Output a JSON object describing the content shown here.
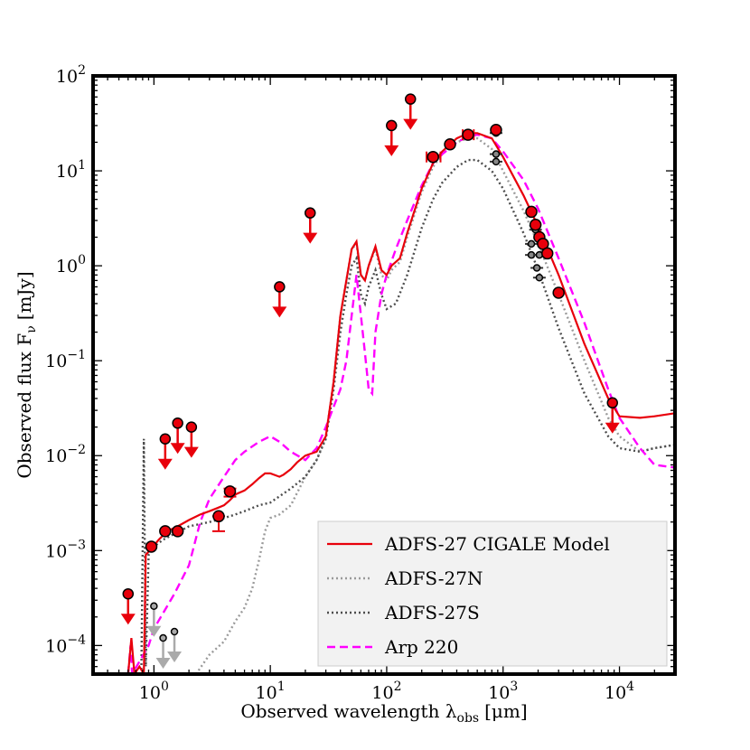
{
  "chart_data": {
    "type": "line",
    "title": "",
    "xscale": "log",
    "yscale": "log",
    "xlim": [
      0.3,
      30000
    ],
    "ylim": [
      5e-05,
      100
    ],
    "xlabel": "Observed wavelength λ",
    "xlabel_sub": "obs",
    "xlabel_unit": "[μm]",
    "ylabel": "Observed flux F",
    "ylabel_sub": "ν",
    "ylabel_unit": "[mJy]",
    "x_ticks": [
      {
        "value": 1,
        "base": "10",
        "exp": "0"
      },
      {
        "value": 10,
        "base": "10",
        "exp": "1"
      },
      {
        "value": 100,
        "base": "10",
        "exp": "2"
      },
      {
        "value": 1000,
        "base": "10",
        "exp": "3"
      },
      {
        "value": 10000,
        "base": "10",
        "exp": "4"
      }
    ],
    "y_ticks": [
      {
        "value": 0.0001,
        "base": "10",
        "exp": "−4"
      },
      {
        "value": 0.001,
        "base": "10",
        "exp": "−3"
      },
      {
        "value": 0.01,
        "base": "10",
        "exp": "−2"
      },
      {
        "value": 0.1,
        "base": "10",
        "exp": "−1"
      },
      {
        "value": 1,
        "base": "10",
        "exp": "0"
      },
      {
        "value": 10,
        "base": "10",
        "exp": "1"
      },
      {
        "value": 100,
        "base": "10",
        "exp": "2"
      }
    ],
    "legend_position": "bottom-right",
    "series": [
      {
        "name": "ADFS-27 CIGALE Model",
        "color": "#e8000b",
        "style": "solid",
        "points": [
          [
            0.6,
            5e-05
          ],
          [
            0.64,
            0.00012
          ],
          [
            0.68,
            5e-05
          ],
          [
            0.75,
            6e-05
          ],
          [
            0.82,
            5e-05
          ],
          [
            0.85,
            0.0009
          ],
          [
            0.95,
            0.00105
          ],
          [
            1.1,
            0.0013
          ],
          [
            1.3,
            0.0016
          ],
          [
            1.6,
            0.0018
          ],
          [
            2.0,
            0.0021
          ],
          [
            2.5,
            0.0024
          ],
          [
            3.0,
            0.0026
          ],
          [
            3.5,
            0.0028
          ],
          [
            4.0,
            0.003
          ],
          [
            4.5,
            0.0034
          ],
          [
            5.0,
            0.0039
          ],
          [
            6.0,
            0.0043
          ],
          [
            7.0,
            0.005
          ],
          [
            8.0,
            0.0058
          ],
          [
            9.0,
            0.0065
          ],
          [
            10.0,
            0.0065
          ],
          [
            12.0,
            0.006
          ],
          [
            13.0,
            0.0063
          ],
          [
            15.0,
            0.0072
          ],
          [
            17.0,
            0.0085
          ],
          [
            20.0,
            0.01
          ],
          [
            25.0,
            0.011
          ],
          [
            30.0,
            0.016
          ],
          [
            35.0,
            0.06
          ],
          [
            40.0,
            0.3
          ],
          [
            45.0,
            0.7
          ],
          [
            50.0,
            1.5
          ],
          [
            55.0,
            1.8
          ],
          [
            60.0,
            0.8
          ],
          [
            65.0,
            0.7
          ],
          [
            70.0,
            1.0
          ],
          [
            80.0,
            1.6
          ],
          [
            90.0,
            0.9
          ],
          [
            100.0,
            0.8
          ],
          [
            110.0,
            1.0
          ],
          [
            130.0,
            1.2
          ],
          [
            150.0,
            2.2
          ],
          [
            200.0,
            6.5
          ],
          [
            250.0,
            12.0
          ],
          [
            300.0,
            16.0
          ],
          [
            400.0,
            22.0
          ],
          [
            500.0,
            25.0
          ],
          [
            600.0,
            25.0
          ],
          [
            800.0,
            22.0
          ],
          [
            1000.0,
            14.0
          ],
          [
            1500.0,
            5.5
          ],
          [
            2000.0,
            2.6
          ],
          [
            3000.0,
            0.8
          ],
          [
            5000.0,
            0.15
          ],
          [
            8000.0,
            0.04
          ],
          [
            10000.0,
            0.026
          ],
          [
            15000.0,
            0.025
          ],
          [
            20000.0,
            0.026
          ],
          [
            30000.0,
            0.028
          ]
        ]
      },
      {
        "name": "ADFS-27N",
        "color": "#9a9a9a",
        "style": "dotted",
        "points": [
          [
            2.3,
            5e-05
          ],
          [
            3.0,
            8e-05
          ],
          [
            4.0,
            0.00011
          ],
          [
            5.0,
            0.00018
          ],
          [
            6.0,
            0.00025
          ],
          [
            7.0,
            0.0004
          ],
          [
            8.0,
            0.0008
          ],
          [
            9.0,
            0.0016
          ],
          [
            10.0,
            0.0022
          ],
          [
            12.0,
            0.0024
          ],
          [
            15.0,
            0.003
          ],
          [
            20.0,
            0.006
          ],
          [
            25.0,
            0.009
          ],
          [
            30.0,
            0.016
          ],
          [
            35.0,
            0.06
          ],
          [
            40.0,
            0.3
          ],
          [
            45.0,
            0.7
          ],
          [
            50.0,
            1.5
          ],
          [
            55.0,
            1.7
          ],
          [
            60.0,
            0.8
          ],
          [
            65.0,
            0.7
          ],
          [
            70.0,
            1.0
          ],
          [
            80.0,
            1.5
          ],
          [
            90.0,
            0.8
          ],
          [
            100.0,
            0.7
          ],
          [
            110.0,
            0.9
          ],
          [
            130.0,
            1.1
          ],
          [
            150.0,
            2.0
          ],
          [
            200.0,
            6.0
          ],
          [
            250.0,
            11.0
          ],
          [
            300.0,
            15.0
          ],
          [
            400.0,
            20.0
          ],
          [
            500.0,
            22.0
          ],
          [
            600.0,
            22.0
          ],
          [
            800.0,
            17.0
          ],
          [
            1000.0,
            10.0
          ],
          [
            1500.0,
            3.8
          ],
          [
            2000.0,
            1.7
          ],
          [
            3000.0,
            0.5
          ],
          [
            5000.0,
            0.1
          ],
          [
            8000.0,
            0.025
          ],
          [
            10000.0,
            0.016
          ],
          [
            15000.0,
            0.011
          ],
          [
            20000.0,
            0.012
          ],
          [
            30000.0,
            0.013
          ]
        ]
      },
      {
        "name": "ADFS-27S",
        "color": "#4d4d4d",
        "style": "dotted",
        "points": [
          [
            0.78,
            5e-05
          ],
          [
            0.82,
            0.015
          ],
          [
            0.85,
            6e-05
          ],
          [
            0.9,
            0.0009
          ],
          [
            1.0,
            0.0011
          ],
          [
            1.2,
            0.0013
          ],
          [
            1.5,
            0.0015
          ],
          [
            2.0,
            0.0018
          ],
          [
            3.0,
            0.002
          ],
          [
            4.0,
            0.0022
          ],
          [
            5.0,
            0.0024
          ],
          [
            6.0,
            0.0026
          ],
          [
            8.0,
            0.003
          ],
          [
            10.0,
            0.0032
          ],
          [
            15.0,
            0.0045
          ],
          [
            20.0,
            0.006
          ],
          [
            25.0,
            0.009
          ],
          [
            30.0,
            0.015
          ],
          [
            35.0,
            0.05
          ],
          [
            40.0,
            0.2
          ],
          [
            45.0,
            0.5
          ],
          [
            50.0,
            1.0
          ],
          [
            55.0,
            1.2
          ],
          [
            60.0,
            0.5
          ],
          [
            65.0,
            0.4
          ],
          [
            70.0,
            0.6
          ],
          [
            80.0,
            0.9
          ],
          [
            90.0,
            0.5
          ],
          [
            100.0,
            0.35
          ],
          [
            120.0,
            0.4
          ],
          [
            150.0,
            0.8
          ],
          [
            200.0,
            2.5
          ],
          [
            250.0,
            5.0
          ],
          [
            300.0,
            7.5
          ],
          [
            400.0,
            11.0
          ],
          [
            500.0,
            13.0
          ],
          [
            600.0,
            13.0
          ],
          [
            800.0,
            10.0
          ],
          [
            1000.0,
            6.5
          ],
          [
            1500.0,
            2.2
          ],
          [
            2000.0,
            0.9
          ],
          [
            3000.0,
            0.22
          ],
          [
            5000.0,
            0.045
          ],
          [
            8000.0,
            0.016
          ],
          [
            10000.0,
            0.012
          ],
          [
            15000.0,
            0.011
          ],
          [
            20000.0,
            0.012
          ],
          [
            30000.0,
            0.013
          ]
        ]
      },
      {
        "name": "Arp 220",
        "color": "#ff00ff",
        "style": "dashed",
        "points": [
          [
            0.6,
            5e-05
          ],
          [
            0.63,
            0.0001
          ],
          [
            0.65,
            5e-05
          ],
          [
            0.9,
            0.0001
          ],
          [
            1.0,
            0.00015
          ],
          [
            1.5,
            0.00035
          ],
          [
            2.0,
            0.0007
          ],
          [
            2.5,
            0.002
          ],
          [
            3.0,
            0.0035
          ],
          [
            4.0,
            0.006
          ],
          [
            5.0,
            0.009
          ],
          [
            6.0,
            0.011
          ],
          [
            8.0,
            0.014
          ],
          [
            10.0,
            0.016
          ],
          [
            12.0,
            0.014
          ],
          [
            15.0,
            0.011
          ],
          [
            20.0,
            0.009
          ],
          [
            25.0,
            0.012
          ],
          [
            30.0,
            0.02
          ],
          [
            40.0,
            0.05
          ],
          [
            45.0,
            0.1
          ],
          [
            50.0,
            0.3
          ],
          [
            55.0,
            0.8
          ],
          [
            60.0,
            0.3
          ],
          [
            65.0,
            0.12
          ],
          [
            70.0,
            0.05
          ],
          [
            75.0,
            0.045
          ],
          [
            80.0,
            0.2
          ],
          [
            90.0,
            0.5
          ],
          [
            100.0,
            0.8
          ],
          [
            120.0,
            1.5
          ],
          [
            150.0,
            3.0
          ],
          [
            200.0,
            7.0
          ],
          [
            250.0,
            12.0
          ],
          [
            300.0,
            15.0
          ],
          [
            400.0,
            20.0
          ],
          [
            500.0,
            23.0
          ],
          [
            600.0,
            24.0
          ],
          [
            800.0,
            22.0
          ],
          [
            1000.0,
            16.0
          ],
          [
            1500.0,
            8.0
          ],
          [
            2000.0,
            4.0
          ],
          [
            3000.0,
            1.2
          ],
          [
            5000.0,
            0.25
          ],
          [
            8000.0,
            0.05
          ],
          [
            10000.0,
            0.025
          ],
          [
            15000.0,
            0.012
          ],
          [
            20000.0,
            0.008
          ],
          [
            30000.0,
            0.0075
          ]
        ]
      }
    ],
    "red_detections": [
      {
        "x": 0.95,
        "y": 0.0011
      },
      {
        "x": 1.25,
        "y": 0.0016
      },
      {
        "x": 1.6,
        "y": 0.0016
      },
      {
        "x": 3.6,
        "y": 0.0023,
        "yerr_low": 0.0016,
        "yerr_high": 0.0023
      },
      {
        "x": 4.5,
        "y": 0.0042,
        "yerr_low": 0.0037,
        "yerr_high": 0.0045
      },
      {
        "x": 250,
        "y": 14.0,
        "xerr_low": 220,
        "xerr_high": 290
      },
      {
        "x": 350,
        "y": 19.0
      },
      {
        "x": 500,
        "y": 24.0,
        "xerr_low": 450,
        "xerr_high": 560
      },
      {
        "x": 870,
        "y": 27.0
      },
      {
        "x": 1750,
        "y": 3.7
      },
      {
        "x": 1900,
        "y": 2.7
      },
      {
        "x": 2050,
        "y": 2.0
      },
      {
        "x": 2200,
        "y": 1.7
      },
      {
        "x": 2400,
        "y": 1.35
      },
      {
        "x": 3000,
        "y": 0.52
      }
    ],
    "red_upper_limits": [
      {
        "x": 0.6,
        "y": 0.00035
      },
      {
        "x": 1.25,
        "y": 0.015
      },
      {
        "x": 1.6,
        "y": 0.022
      },
      {
        "x": 2.1,
        "y": 0.02
      },
      {
        "x": 12.0,
        "y": 0.6
      },
      {
        "x": 22.0,
        "y": 3.6
      },
      {
        "x": 110.0,
        "y": 30.0
      },
      {
        "x": 160.0,
        "y": 57.0
      },
      {
        "x": 8700.0,
        "y": 0.036
      }
    ],
    "gray_detections": [
      {
        "x": 870,
        "y": 25.0
      },
      {
        "x": 870,
        "y": 15.0
      },
      {
        "x": 870,
        "y": 12.5
      },
      {
        "x": 1750,
        "y": 1.7
      },
      {
        "x": 1750,
        "y": 1.3
      },
      {
        "x": 1900,
        "y": 2.4
      },
      {
        "x": 1950,
        "y": 0.95
      },
      {
        "x": 2050,
        "y": 1.3
      },
      {
        "x": 2050,
        "y": 0.75
      }
    ],
    "gray_upper_limits": [
      {
        "x": 1.0,
        "y": 0.00026
      },
      {
        "x": 1.2,
        "y": 0.00012
      },
      {
        "x": 1.5,
        "y": 0.00014
      }
    ]
  }
}
